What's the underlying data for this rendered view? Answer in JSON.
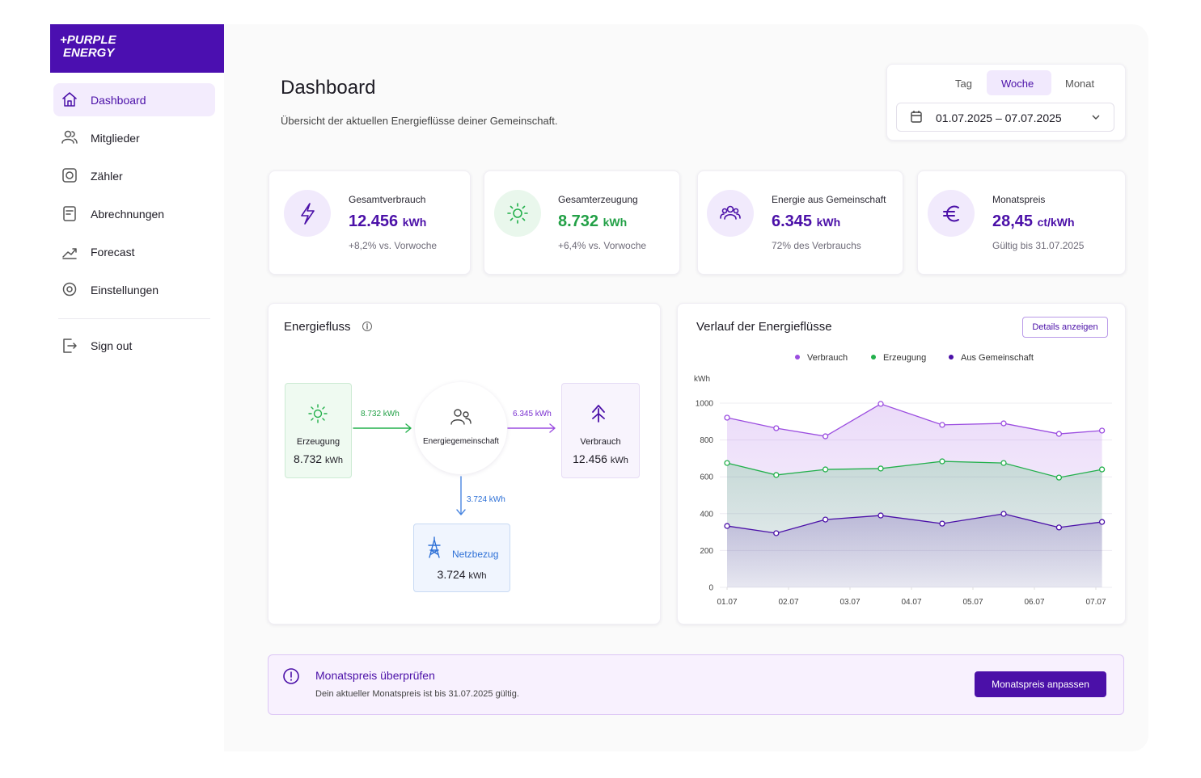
{
  "sidebar": {
    "logo": [
      "+PURPLE",
      "ENERGY"
    ],
    "nav": [
      "Dashboard",
      "Mitglieder",
      "Zähler",
      "Abrechnungen",
      "Forecast",
      "Einstellungen"
    ],
    "sign_out": "Sign out"
  },
  "header": {
    "title": "Dashboard",
    "subtitle": "Übersicht der aktuellen Energieflüsse deiner Gemeinschaft.",
    "tabs": [
      "Tag",
      "Woche",
      "Monat"
    ],
    "date_range": "01.07.2025 – 07.07.2025"
  },
  "kpis": [
    {
      "label": "Gesamtverbrauch",
      "value": "12.456",
      "unit": "kWh",
      "note": "+8,2% vs. Vorwoche"
    },
    {
      "label": "Gesamterzeugung",
      "value": "8.732",
      "unit": "kWh",
      "note": "+6,4% vs. Vorwoche"
    },
    {
      "label": "Energie aus Gemeinschaft",
      "value": "6.345",
      "unit": "kWh",
      "note": "72% des Verbrauchs"
    },
    {
      "label": "Monatspreis",
      "value": "28,45",
      "unit": "ct/kWh",
      "note": "Gültig bis 31.07.2025"
    }
  ],
  "flow": {
    "title": "Energiefluss",
    "nodes": [
      {
        "label": "Erzeugung",
        "value": "8.732",
        "unit": "kWh"
      },
      {
        "label": "Energiegemeinschaft"
      },
      {
        "label": "Verbrauch",
        "value": "12.456",
        "unit": "kWh"
      },
      {
        "label": "Netzbezug",
        "value": "3.724",
        "unit": "kWh"
      }
    ],
    "edges": [
      "8.732 kWh",
      "6.345 kWh",
      "3.724 kWh"
    ]
  },
  "chart_data": {
    "type": "line",
    "title": "Verlauf der Energieflüsse",
    "button": "Details anzeigen",
    "ylabel": "kWh",
    "x": [
      1,
      1.8,
      2.6,
      3.5,
      4.5,
      5.5,
      6.4,
      7.1
    ],
    "xlim": [
      1,
      7.1
    ],
    "xticks": [
      {
        "value": 1,
        "label": "01.07"
      },
      {
        "value": 2,
        "label": "02.07"
      },
      {
        "value": 3,
        "label": "03.07"
      },
      {
        "value": 4,
        "label": "04.07"
      },
      {
        "value": 5,
        "label": "05.07"
      },
      {
        "value": 6,
        "label": "06.07"
      },
      {
        "value": 7,
        "label": "07.07"
      }
    ],
    "ylim": [
      0,
      1000
    ],
    "yticks": [
      0,
      200,
      400,
      600,
      800,
      1000
    ],
    "grid": true,
    "legend": "top",
    "area": true,
    "series": [
      {
        "name": "Verbrauch",
        "color": "#9b4de0",
        "values": [
          921,
          864,
          820,
          996,
          882,
          890,
          833,
          851
        ]
      },
      {
        "name": "Erzeugung",
        "color": "#22b04b",
        "values": [
          675,
          610,
          640,
          645,
          684,
          675,
          596,
          640
        ]
      },
      {
        "name": "Aus Gemeinschaft",
        "color": "#4b10a8",
        "values": [
          333,
          294,
          368,
          390,
          346,
          399,
          325,
          355
        ]
      }
    ]
  },
  "alert": {
    "title": "Monatspreis überprüfen",
    "text": "Dein aktueller Monatspreis ist bis 31.07.2025 gültig.",
    "button": "Monatspreis anpassen"
  }
}
